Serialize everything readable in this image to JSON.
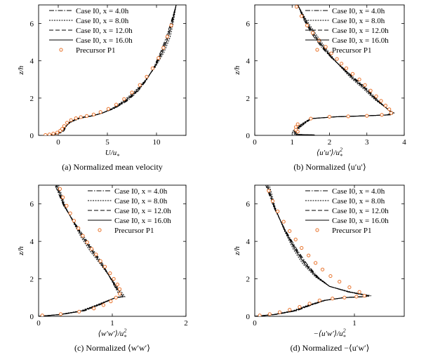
{
  "figure": {
    "panels": [
      {
        "id": "a",
        "caption": "(a) Normalized mean velocity",
        "xlabel": "U/u",
        "xlabel_sub": "*",
        "ylabel": "z/h",
        "xlim": [
          -2,
          13
        ],
        "ylim": [
          0,
          7
        ],
        "xticks": [
          0,
          5,
          10
        ],
        "yticks": [
          0,
          2,
          4,
          6
        ],
        "legend_placement": "top-left"
      },
      {
        "id": "b",
        "caption": "(b) Normalized ⟨u′u′⟩",
        "xlabel": "⟨u′u′⟩/u",
        "xlabel_sup": "2",
        "xlabel_sub": "*",
        "ylabel": "z/h",
        "xlim": [
          0,
          4
        ],
        "ylim": [
          0,
          7
        ],
        "xticks": [
          0,
          1,
          2,
          3,
          4
        ],
        "yticks": [
          0,
          2,
          4,
          6
        ],
        "legend_placement": "top-right"
      },
      {
        "id": "c",
        "caption": "(c) Normalized ⟨w′w′⟩",
        "xlabel": "⟨w′w′⟩/u",
        "xlabel_sup": "2",
        "xlabel_sub": "*",
        "ylabel": "z/h",
        "xlim": [
          0,
          2
        ],
        "ylim": [
          0,
          7
        ],
        "xticks": [
          0,
          1,
          2
        ],
        "yticks": [
          0,
          2,
          4,
          6
        ],
        "legend_placement": "top-right"
      },
      {
        "id": "d",
        "caption": "(d) Normalized −⟨u′w′⟩",
        "xlabel": "−⟨u′w′⟩/u",
        "xlabel_sup": "2",
        "xlabel_sub": "*",
        "ylabel": "z/h",
        "xlim": [
          0,
          1.5
        ],
        "ylim": [
          0,
          7
        ],
        "xticks": [
          0,
          1
        ],
        "yticks": [
          0,
          2,
          4,
          6
        ],
        "legend_placement": "top-right"
      }
    ],
    "legend": [
      {
        "name": "Case I0, x = 4.0h",
        "style": "dashdot"
      },
      {
        "name": "Case I0, x = 8.0h",
        "style": "dotted"
      },
      {
        "name": "Case I0, x = 12.0h",
        "style": "dashed"
      },
      {
        "name": "Case I0, x = 16.0h",
        "style": "solid"
      },
      {
        "name": "Precursor P1",
        "style": "markers"
      }
    ],
    "marker_color": "#e8722a",
    "line_color": "#000000"
  },
  "chart_data": [
    {
      "type": "line",
      "panel": "a",
      "series": [
        {
          "name": "Case I0, x = 16.0h",
          "x": [
            -1.3,
            -0.5,
            0.0,
            0.4,
            0.7,
            1.2,
            2.0,
            2.7,
            3.5,
            4.5,
            5.6,
            6.8,
            7.9,
            8.9,
            9.8,
            10.6,
            11.2,
            11.6,
            12.0
          ],
          "y": [
            0.0,
            0.05,
            0.12,
            0.25,
            0.45,
            0.7,
            0.9,
            0.98,
            1.05,
            1.2,
            1.45,
            1.85,
            2.35,
            2.95,
            3.65,
            4.45,
            5.25,
            6.05,
            7.0
          ]
        },
        {
          "name": "Precursor P1",
          "x": [
            -1.3,
            -0.9,
            -0.5,
            -0.1,
            0.2,
            0.4,
            0.6,
            0.9,
            1.3,
            1.8,
            2.3,
            2.9,
            3.6,
            4.3,
            5.1,
            5.9,
            6.7,
            7.5,
            8.3,
            9.0,
            9.6,
            10.2,
            10.7,
            11.1,
            11.5
          ],
          "y": [
            0.02,
            0.05,
            0.1,
            0.15,
            0.25,
            0.35,
            0.5,
            0.68,
            0.82,
            0.92,
            0.98,
            1.04,
            1.12,
            1.25,
            1.42,
            1.65,
            1.95,
            2.3,
            2.7,
            3.15,
            3.6,
            4.15,
            4.7,
            5.3,
            5.9
          ]
        }
      ]
    },
    {
      "type": "line",
      "panel": "b",
      "series": [
        {
          "name": "Case I0, x = 16.0h",
          "x": [
            1.6,
            1.1,
            1.05,
            1.2,
            1.5,
            2.2,
            3.0,
            3.6,
            3.7,
            3.5,
            3.25,
            2.95,
            2.6,
            2.3,
            2.1,
            1.85,
            1.6,
            1.35,
            1.15
          ],
          "y": [
            0.02,
            0.05,
            0.2,
            0.5,
            0.9,
            1.0,
            1.05,
            1.1,
            1.2,
            1.5,
            1.9,
            2.5,
            3.1,
            3.7,
            4.1,
            4.7,
            5.4,
            6.2,
            7.0
          ]
        },
        {
          "name": "Precursor P1",
          "x": [
            1.15,
            1.1,
            1.1,
            1.15,
            1.5,
            2.0,
            2.5,
            3.0,
            3.4,
            3.65,
            3.6,
            3.5,
            3.38,
            3.25,
            3.1,
            2.95,
            2.8,
            2.62,
            2.45,
            2.32,
            2.2,
            2.05,
            1.9,
            1.72,
            1.55,
            1.4,
            1.25,
            1.12
          ],
          "y": [
            0.2,
            0.3,
            0.45,
            0.6,
            0.9,
            1.0,
            1.02,
            1.05,
            1.1,
            1.2,
            1.4,
            1.6,
            1.85,
            2.1,
            2.4,
            2.7,
            3.0,
            3.3,
            3.6,
            3.85,
            4.1,
            4.4,
            4.75,
            5.1,
            5.5,
            5.9,
            6.4,
            6.9
          ]
        }
      ]
    },
    {
      "type": "line",
      "panel": "c",
      "series": [
        {
          "name": "Case I0, x = 16.0h",
          "x": [
            0.0,
            0.3,
            0.6,
            0.8,
            0.95,
            1.05,
            1.15,
            1.1,
            1.05,
            0.95,
            0.85,
            0.72,
            0.6,
            0.48,
            0.35,
            0.25
          ],
          "y": [
            0.0,
            0.1,
            0.3,
            0.6,
            0.85,
            1.0,
            1.05,
            1.3,
            1.6,
            2.2,
            2.8,
            3.5,
            4.2,
            5.0,
            5.9,
            7.0
          ]
        },
        {
          "name": "Precursor P1",
          "x": [
            0.05,
            0.3,
            0.55,
            0.75,
            0.88,
            0.98,
            1.05,
            1.1,
            1.1,
            1.07,
            1.02,
            0.97,
            0.9,
            0.84,
            0.78,
            0.72,
            0.66,
            0.6,
            0.54,
            0.48,
            0.43,
            0.38,
            0.33,
            0.29
          ],
          "y": [
            0.05,
            0.12,
            0.25,
            0.42,
            0.6,
            0.8,
            1.0,
            1.2,
            1.45,
            1.7,
            2.0,
            2.3,
            2.65,
            2.95,
            3.3,
            3.6,
            3.95,
            4.3,
            4.7,
            5.1,
            5.5,
            5.9,
            6.35,
            6.8
          ]
        }
      ]
    },
    {
      "type": "line",
      "panel": "d",
      "series": [
        {
          "name": "Case I0, x = 16.0h",
          "x": [
            0.0,
            0.2,
            0.4,
            0.55,
            0.7,
            0.9,
            1.1,
            1.15,
            0.95,
            0.75,
            0.62,
            0.5,
            0.4,
            0.3,
            0.2,
            0.13
          ],
          "y": [
            0.0,
            0.1,
            0.3,
            0.6,
            0.85,
            1.0,
            1.05,
            1.1,
            1.3,
            1.6,
            2.1,
            2.8,
            3.6,
            4.6,
            5.8,
            7.0
          ]
        },
        {
          "name": "Precursor P1",
          "x": [
            0.05,
            0.15,
            0.25,
            0.35,
            0.45,
            0.55,
            0.65,
            0.78,
            0.9,
            1.02,
            1.1,
            1.05,
            0.95,
            0.85,
            0.76,
            0.68,
            0.61,
            0.54,
            0.47,
            0.41,
            0.35,
            0.29,
            0.23,
            0.18,
            0.14
          ],
          "y": [
            0.05,
            0.12,
            0.22,
            0.35,
            0.5,
            0.68,
            0.85,
            0.95,
            1.0,
            1.05,
            1.1,
            1.3,
            1.55,
            1.85,
            2.15,
            2.5,
            2.85,
            3.25,
            3.65,
            4.1,
            4.55,
            5.05,
            5.6,
            6.15,
            6.7
          ]
        }
      ]
    }
  ]
}
